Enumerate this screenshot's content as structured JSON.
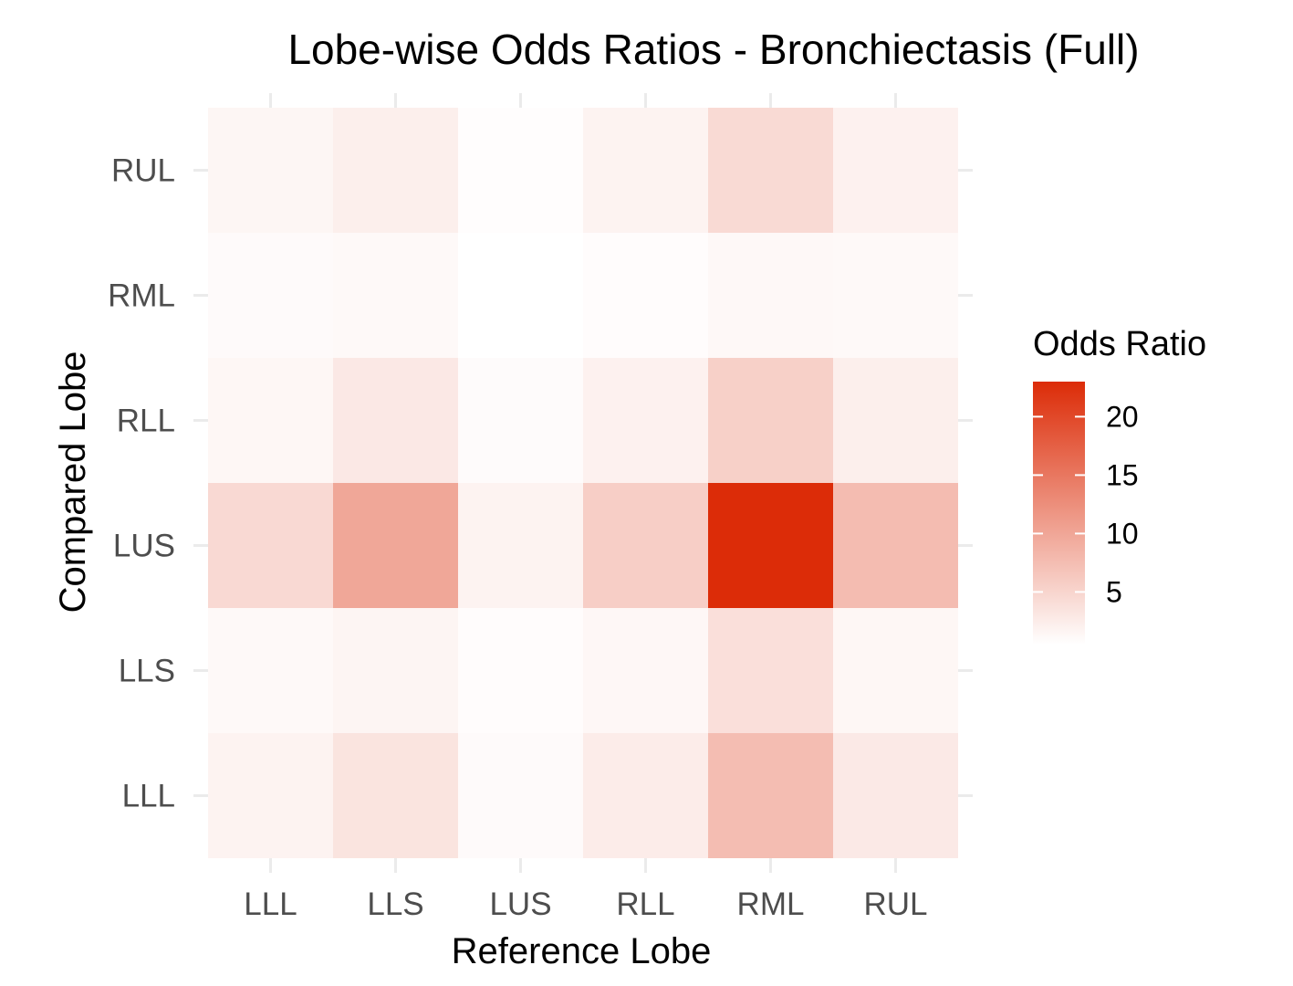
{
  "chart_data": {
    "type": "heatmap",
    "title": "Lobe-wise Odds Ratios - Bronchiectasis (Full)",
    "xlabel": "Reference Lobe",
    "ylabel": "Compared Lobe",
    "x_categories": [
      "LLL",
      "LLS",
      "LUS",
      "RLL",
      "RML",
      "RUL"
    ],
    "y_categories": [
      "LLL",
      "LLS",
      "LUS",
      "RLL",
      "RML",
      "RUL"
    ],
    "values": [
      {
        "x": "LLL",
        "y": "RUL",
        "value": 1.5
      },
      {
        "x": "LLS",
        "y": "RUL",
        "value": 2.2
      },
      {
        "x": "LUS",
        "y": "RUL",
        "value": 0.7
      },
      {
        "x": "RLL",
        "y": "RUL",
        "value": 1.8
      },
      {
        "x": "RML",
        "y": "RUL",
        "value": 4.4
      },
      {
        "x": "RUL",
        "y": "RUL",
        "value": 2.0
      },
      {
        "x": "LLL",
        "y": "RML",
        "value": 1.0
      },
      {
        "x": "LLS",
        "y": "RML",
        "value": 1.1
      },
      {
        "x": "LUS",
        "y": "RML",
        "value": 0.5
      },
      {
        "x": "RLL",
        "y": "RML",
        "value": 0.8
      },
      {
        "x": "RML",
        "y": "RML",
        "value": 1.2
      },
      {
        "x": "RUL",
        "y": "RML",
        "value": 1.1
      },
      {
        "x": "LLL",
        "y": "RLL",
        "value": 1.4
      },
      {
        "x": "LLS",
        "y": "RLL",
        "value": 2.9
      },
      {
        "x": "LUS",
        "y": "RLL",
        "value": 0.9
      },
      {
        "x": "RLL",
        "y": "RLL",
        "value": 2.0
      },
      {
        "x": "RML",
        "y": "RLL",
        "value": 5.5
      },
      {
        "x": "RUL",
        "y": "RLL",
        "value": 2.2
      },
      {
        "x": "LLL",
        "y": "LUS",
        "value": 4.5
      },
      {
        "x": "LLS",
        "y": "LUS",
        "value": 9.9
      },
      {
        "x": "LUS",
        "y": "LUS",
        "value": 1.8
      },
      {
        "x": "RLL",
        "y": "LUS",
        "value": 5.7
      },
      {
        "x": "RML",
        "y": "LUS",
        "value": 23.0
      },
      {
        "x": "RUL",
        "y": "LUS",
        "value": 7.6
      },
      {
        "x": "LLL",
        "y": "LLS",
        "value": 1.1
      },
      {
        "x": "LLS",
        "y": "LLS",
        "value": 1.6
      },
      {
        "x": "LUS",
        "y": "LLS",
        "value": 0.8
      },
      {
        "x": "RLL",
        "y": "LLS",
        "value": 1.3
      },
      {
        "x": "RML",
        "y": "LLS",
        "value": 3.9
      },
      {
        "x": "RUL",
        "y": "LLS",
        "value": 1.4
      },
      {
        "x": "LLL",
        "y": "LLL",
        "value": 1.8
      },
      {
        "x": "LLS",
        "y": "LLL",
        "value": 3.4
      },
      {
        "x": "LUS",
        "y": "LLL",
        "value": 1.0
      },
      {
        "x": "RLL",
        "y": "LLL",
        "value": 2.5
      },
      {
        "x": "RML",
        "y": "LLL",
        "value": 7.5
      },
      {
        "x": "RUL",
        "y": "LLL",
        "value": 2.8
      }
    ],
    "legend": {
      "title": "Odds Ratio",
      "placement": "right",
      "breaks": [
        5,
        10,
        15,
        20
      ],
      "range": [
        0.5,
        23.0
      ],
      "low_color": "#ffffff",
      "high_color": "#dc2c08"
    },
    "grid": true
  }
}
